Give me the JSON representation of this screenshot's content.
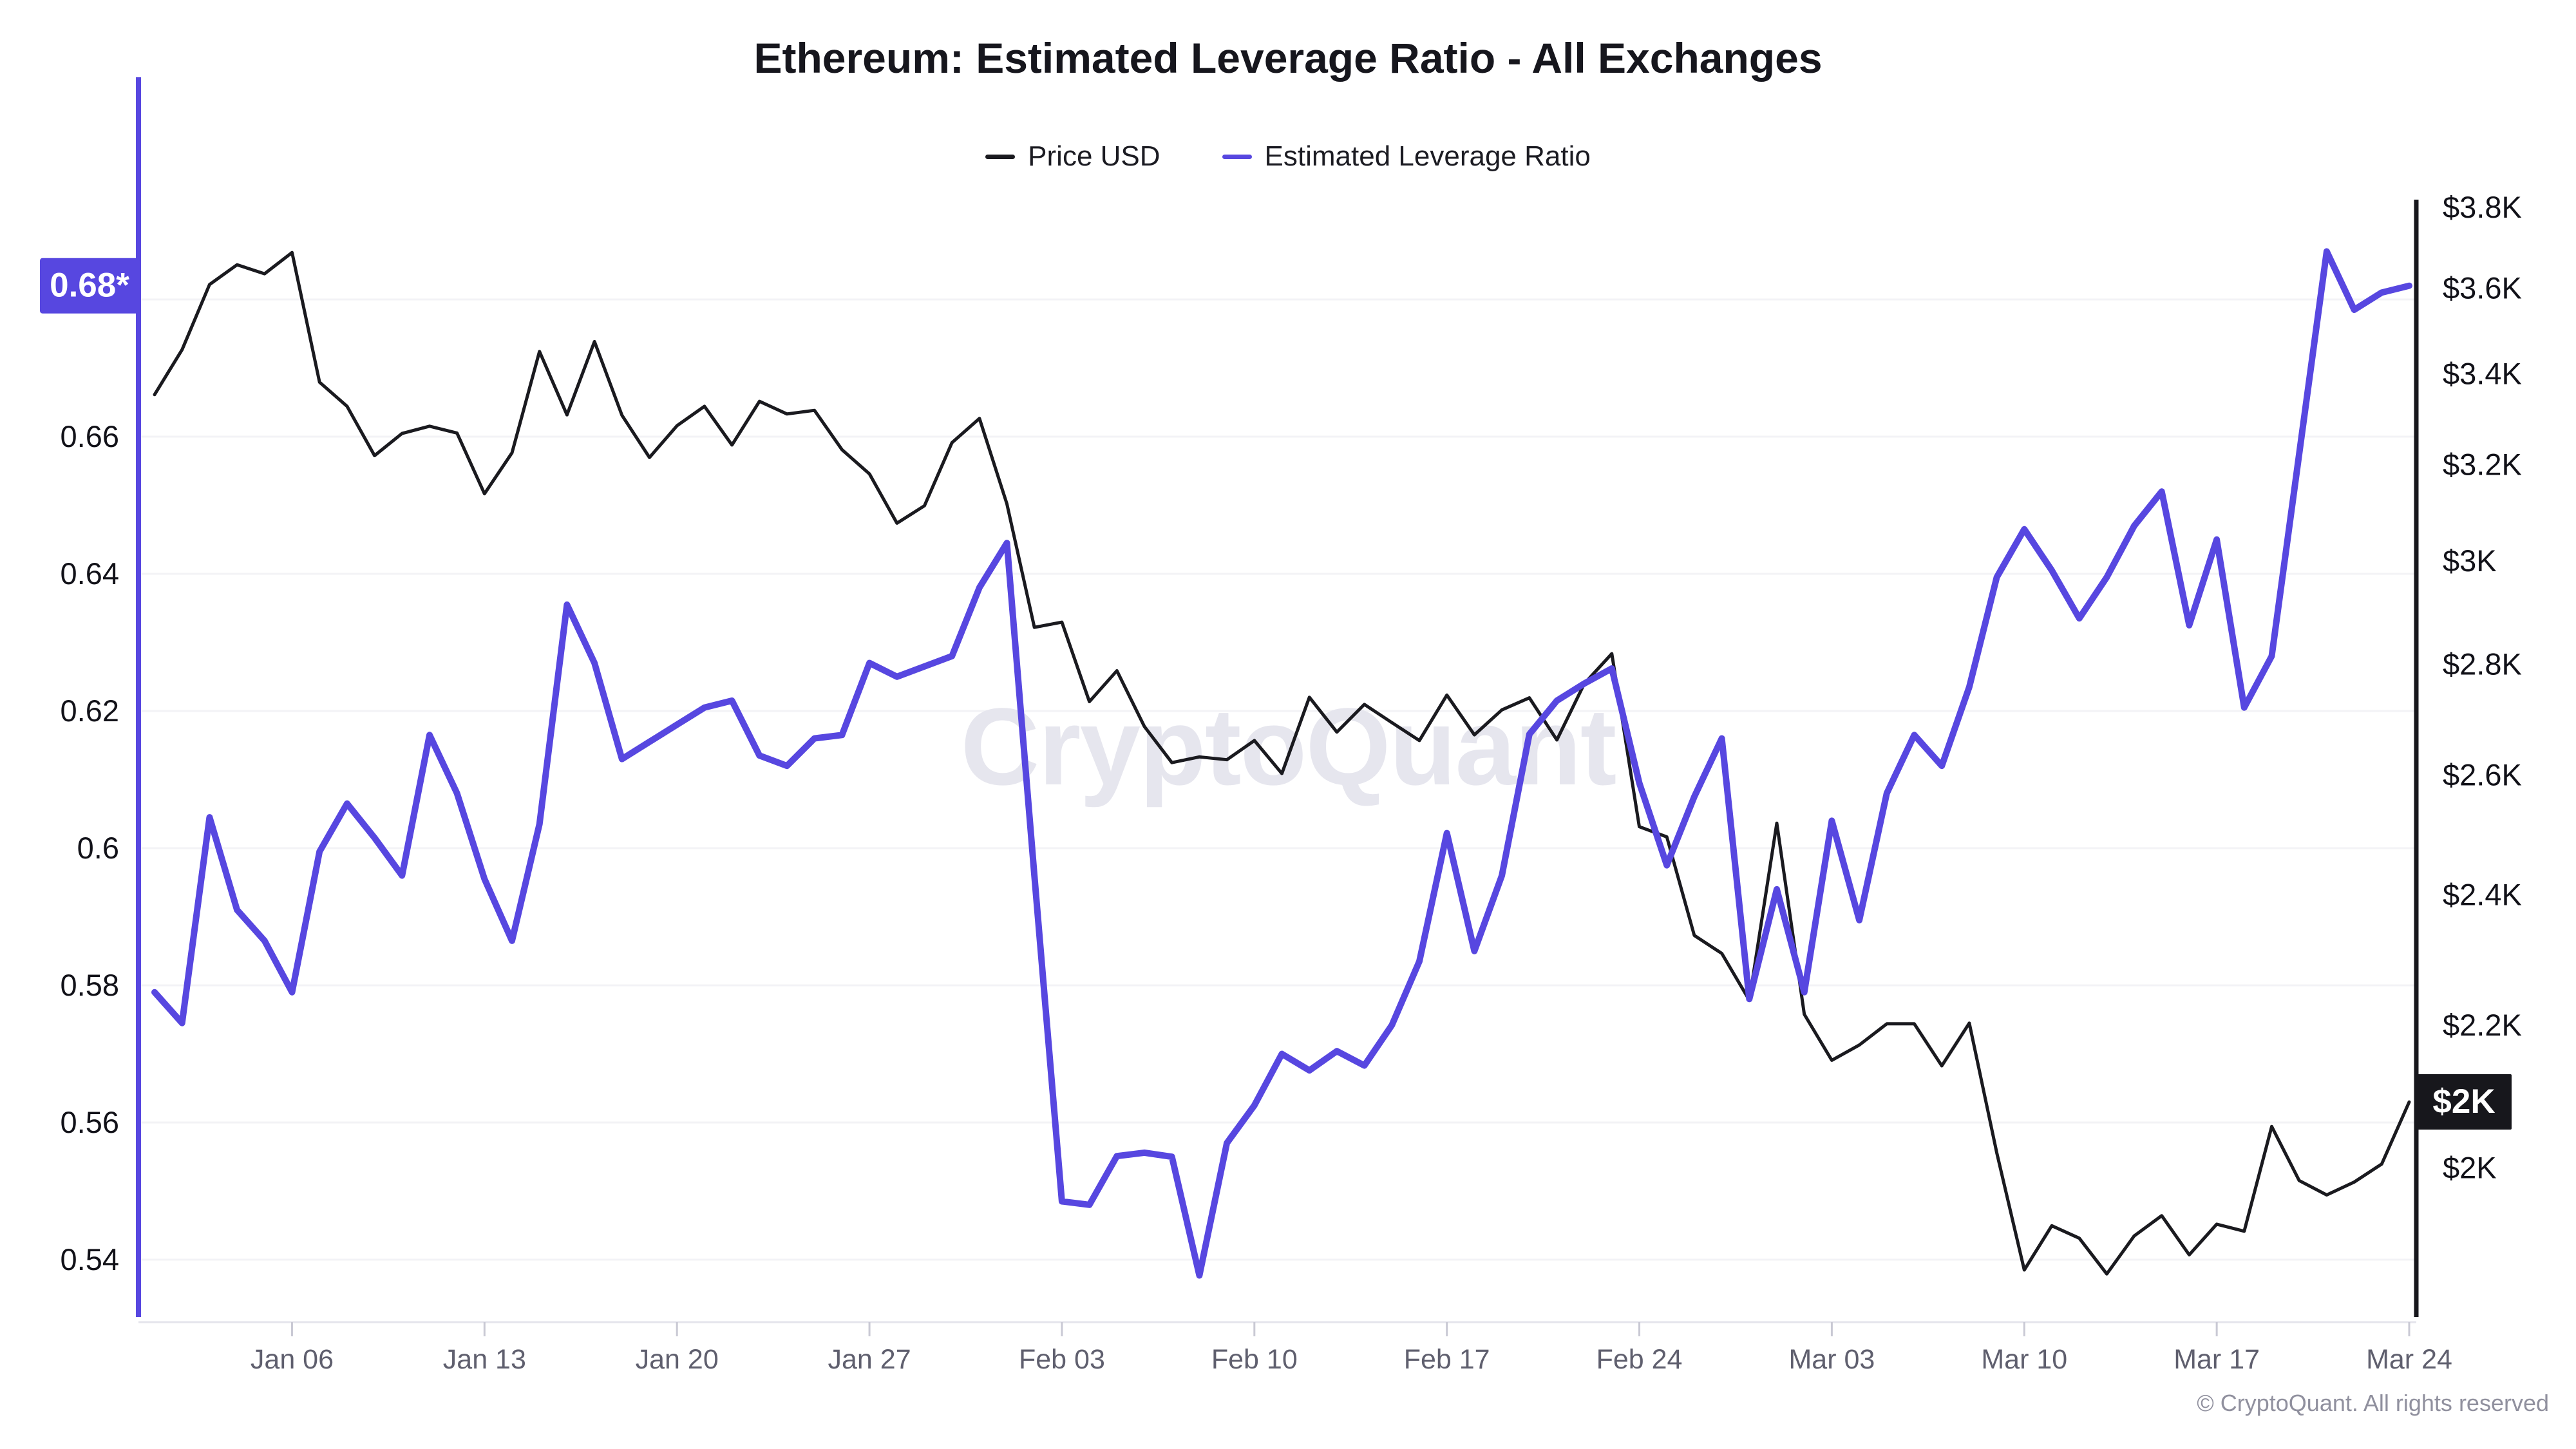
{
  "title": "Ethereum: Estimated Leverage Ratio - All Exchanges",
  "legend": [
    {
      "label": "Price USD",
      "color": "#1a1a1f"
    },
    {
      "label": "Estimated Leverage Ratio",
      "color": "#5747e0"
    }
  ],
  "watermark": "CryptoQuant",
  "footer": "© CryptoQuant. All rights reserved",
  "badges": {
    "ratio_current": "0.68*",
    "ratio_badge_color": "#5747e0",
    "price_current": "$2K",
    "price_badge_color": "#17171c"
  },
  "colors": {
    "price_line": "#1a1a1f",
    "leverage_line": "#5747e0",
    "grid": "#f3f3f6",
    "x_axis_line": "#e4e4ec",
    "x_tick": "#c9c9d4",
    "x_label": "#5f5f6e",
    "y_label": "#111118",
    "watermark": "#e6e6ee",
    "left_axis": "#5747e0",
    "right_axis": "#17171c"
  },
  "chart_data": {
    "type": "line",
    "title": "Ethereum: Estimated Leverage Ratio - All Exchanges",
    "grid": "horizontal",
    "legend_position": "top",
    "x": [
      "Jan 01",
      "Jan 02",
      "Jan 03",
      "Jan 04",
      "Jan 05",
      "Jan 06",
      "Jan 07",
      "Jan 08",
      "Jan 09",
      "Jan 10",
      "Jan 11",
      "Jan 12",
      "Jan 13",
      "Jan 14",
      "Jan 15",
      "Jan 16",
      "Jan 17",
      "Jan 18",
      "Jan 19",
      "Jan 20",
      "Jan 21",
      "Jan 22",
      "Jan 23",
      "Jan 24",
      "Jan 25",
      "Jan 26",
      "Jan 27",
      "Jan 28",
      "Jan 29",
      "Jan 30",
      "Jan 31",
      "Feb 01",
      "Feb 02",
      "Feb 03",
      "Feb 04",
      "Feb 05",
      "Feb 06",
      "Feb 07",
      "Feb 08",
      "Feb 09",
      "Feb 10",
      "Feb 11",
      "Feb 12",
      "Feb 13",
      "Feb 14",
      "Feb 15",
      "Feb 16",
      "Feb 17",
      "Feb 18",
      "Feb 19",
      "Feb 20",
      "Feb 21",
      "Feb 22",
      "Feb 23",
      "Feb 24",
      "Feb 25",
      "Feb 26",
      "Feb 27",
      "Feb 28",
      "Mar 01",
      "Mar 02",
      "Mar 03",
      "Mar 04",
      "Mar 05",
      "Mar 06",
      "Mar 07",
      "Mar 08",
      "Mar 09",
      "Mar 10",
      "Mar 11",
      "Mar 12",
      "Mar 13",
      "Mar 14",
      "Mar 15",
      "Mar 16",
      "Mar 17",
      "Mar 18",
      "Mar 19",
      "Mar 20",
      "Mar 21",
      "Mar 22",
      "Mar 23",
      "Mar 24"
    ],
    "x_axis": {
      "tick_labels": [
        "Jan 06",
        "Jan 13",
        "Jan 20",
        "Jan 27",
        "Feb 03",
        "Feb 10",
        "Feb 17",
        "Feb 24",
        "Mar 03",
        "Mar 10",
        "Mar 17",
        "Mar 24"
      ],
      "tick_day_indices": [
        5,
        12,
        19,
        26,
        33,
        40,
        47,
        54,
        61,
        68,
        75,
        82
      ]
    },
    "y_axis_left": {
      "label": "Estimated Leverage Ratio",
      "scale": "linear",
      "ticks": [
        0.68,
        0.66,
        0.64,
        0.62,
        0.6,
        0.58,
        0.56,
        0.54
      ],
      "tick_labels": [
        "0.68",
        "0.66",
        "0.64",
        "0.62",
        "0.6",
        "0.58",
        "0.56",
        "0.54"
      ]
    },
    "y_axis_right": {
      "label": "Price USD",
      "scale": "log",
      "ticks": [
        3800,
        3600,
        3400,
        3200,
        3000,
        2800,
        2600,
        2400,
        2200,
        2000
      ],
      "tick_labels": [
        "$3.8K",
        "$3.6K",
        "$3.4K",
        "$3.2K",
        "$3K",
        "$2.8K",
        "$2.6K",
        "$2.4K",
        "$2.2K",
        "$2K"
      ]
    },
    "series": [
      {
        "name": "Price USD",
        "axis": "right",
        "color": "#1a1a1f",
        "values": [
          3353,
          3455,
          3609,
          3657,
          3635,
          3687,
          3381,
          3327,
          3219,
          3267,
          3283,
          3268,
          3138,
          3225,
          3451,
          3308,
          3474,
          3307,
          3215,
          3284,
          3327,
          3242,
          3338,
          3310,
          3318,
          3232,
          3180,
          3077,
          3113,
          3247,
          3300,
          3117,
          2870,
          2880,
          2731,
          2788,
          2686,
          2622,
          2632,
          2627,
          2661,
          2603,
          2739,
          2676,
          2726,
          2693,
          2661,
          2743,
          2671,
          2716,
          2738,
          2662,
          2764,
          2820,
          2512,
          2495,
          2336,
          2308,
          2237,
          2518,
          2216,
          2149,
          2171,
          2202,
          2202,
          2141,
          2203,
          2020,
          1868,
          1924,
          1908,
          1863,
          1911,
          1937,
          1887,
          1926,
          1917,
          2056,
          1983,
          1964,
          1981,
          2005,
          2090
        ]
      },
      {
        "name": "Estimated Leverage Ratio",
        "axis": "left",
        "color": "#5747e0",
        "values": [
          0.579,
          0.5745,
          0.6045,
          0.591,
          0.5865,
          0.579,
          0.5995,
          0.6065,
          0.6015,
          0.596,
          0.6165,
          0.608,
          0.5955,
          0.5865,
          0.6035,
          0.6355,
          0.627,
          0.613,
          0.6155,
          0.618,
          0.6205,
          0.6215,
          0.6135,
          0.612,
          0.616,
          0.6165,
          0.627,
          0.625,
          0.6265,
          0.628,
          0.638,
          0.6445,
          0.596,
          0.5485,
          0.548,
          0.5551,
          0.5556,
          0.555,
          0.5377,
          0.557,
          0.5625,
          0.57,
          0.5676,
          0.5704,
          0.5683,
          0.5742,
          0.5835,
          0.6022,
          0.585,
          0.596,
          0.6166,
          0.6215,
          0.624,
          0.6262,
          0.6095,
          0.5975,
          0.6075,
          0.616,
          0.578,
          0.594,
          0.579,
          0.604,
          0.5895,
          0.608,
          0.6165,
          0.612,
          0.6235,
          0.6395,
          0.6465,
          0.6405,
          0.6335,
          0.6395,
          0.647,
          0.652,
          0.6325,
          0.645,
          0.6205,
          0.628,
          0.6575,
          0.687,
          0.6785,
          0.681,
          0.682
        ]
      }
    ]
  }
}
